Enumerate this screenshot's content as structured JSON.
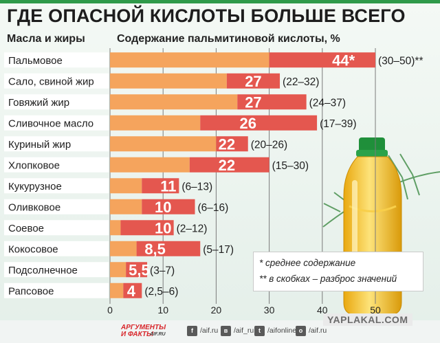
{
  "title": "ГДЕ ОПАСНОЙ КИСЛОТЫ БОЛЬШЕ ВСЕГО",
  "header_left": "Масла и жиры",
  "header_right": "Содержание пальмитиновой кислоты, %",
  "notes": [
    "* среднее содержание",
    "** в скобках – разброс значений"
  ],
  "footer": {
    "logo_lines": [
      "АРГУМЕНТЫ",
      "И ФАКТЫ"
    ],
    "logo_site": "AIF.RU",
    "social": [
      {
        "icon": "facebook-icon",
        "glyph": "f",
        "label": "/aif.ru"
      },
      {
        "icon": "vk-icon",
        "glyph": "в",
        "label": "/aif_ru"
      },
      {
        "icon": "twitter-icon",
        "glyph": "t",
        "label": "/aifonline"
      },
      {
        "icon": "odnoklassniki-icon",
        "glyph": "о",
        "label": "/aif.ru"
      }
    ]
  },
  "watermark": "YAPLAKAL.COM",
  "colors": {
    "orange": "#f5a45d",
    "red": "#e4574f",
    "label_bg": "#ffffff",
    "value_text": "#ffffff"
  },
  "chart_data": {
    "type": "bar",
    "orientation": "horizontal",
    "categories": [
      "Пальмовое",
      "Сало, свиной жир",
      "Говяжий жир",
      "Сливочное масло",
      "Куриный жир",
      "Хлопковое",
      "Кукурузное",
      "Оливковое",
      "Соевое",
      "Кокосовое",
      "Подсолнечное",
      "Рапсовое"
    ],
    "values": [
      44,
      27,
      27,
      26,
      22,
      22,
      11,
      10,
      10,
      8.5,
      5.5,
      4
    ],
    "value_labels": [
      "44*",
      "27",
      "27",
      "26",
      "22",
      "22",
      "11",
      "10",
      "10",
      "8,5",
      "5,5",
      "4"
    ],
    "range_min": [
      30,
      22,
      24,
      17,
      20,
      15,
      6,
      6,
      2,
      5,
      3,
      2.5
    ],
    "range_max": [
      50,
      32,
      37,
      39,
      26,
      30,
      13,
      16,
      12,
      17,
      7,
      6
    ],
    "range_labels": [
      "(30–50)**",
      "(22–32)",
      "(24–37)",
      "(17–39)",
      "(20–26)",
      "(15–30)",
      "(6–13)",
      "(6–16)",
      "(2–12)",
      "(5–17)",
      "(3–7)",
      "(2,5–6)"
    ],
    "x_ticks": [
      "0",
      "10",
      "20",
      "30",
      "40",
      "50"
    ],
    "xlim": [
      0,
      55
    ],
    "grid": true
  }
}
